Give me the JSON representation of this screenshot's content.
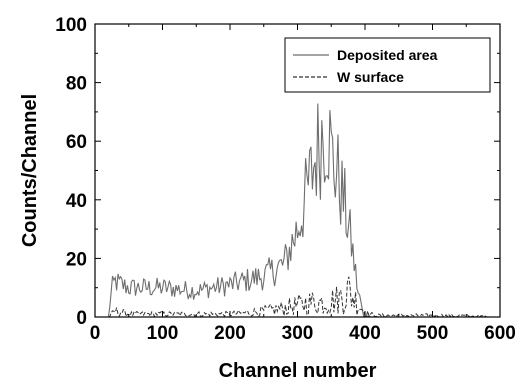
{
  "chart_data": {
    "type": "line",
    "title": "",
    "xlabel": "Channel number",
    "ylabel": "Counts/Channel",
    "xlim": [
      0,
      600
    ],
    "ylim": [
      0,
      100
    ],
    "xticks": [
      "0",
      "100",
      "200",
      "300",
      "400",
      "500",
      "600"
    ],
    "yticks": [
      "0",
      "20",
      "40",
      "60",
      "80",
      "100"
    ],
    "grid": false,
    "legend_position": "top-right",
    "series": [
      {
        "name": "Deposited area",
        "style": "solid",
        "color": "#6e6e6e",
        "x": [
          20,
          25,
          30,
          50,
          80,
          100,
          150,
          200,
          250,
          280,
          300,
          320,
          335,
          345,
          350,
          360,
          370,
          380,
          390,
          400,
          410
        ],
        "y": [
          0,
          10,
          12,
          10,
          10,
          10,
          9,
          11,
          14,
          18,
          30,
          48,
          62,
          66,
          55,
          48,
          38,
          25,
          8,
          1,
          0
        ]
      },
      {
        "name": "W surface",
        "style": "dashed",
        "color": "#333333",
        "x": [
          20,
          30,
          50,
          100,
          150,
          200,
          250,
          280,
          300,
          320,
          340,
          360,
          375,
          385,
          395,
          405,
          420,
          450,
          500,
          550,
          580
        ],
        "y": [
          0,
          2,
          1,
          1,
          1,
          1,
          2,
          3,
          4,
          5,
          5,
          6,
          9,
          6,
          3,
          1,
          0.5,
          0.5,
          0.5,
          0.4,
          0
        ]
      }
    ]
  }
}
